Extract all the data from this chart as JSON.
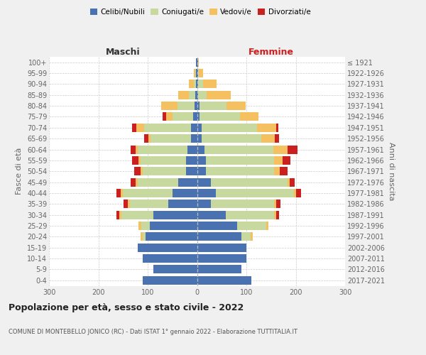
{
  "age_groups": [
    "100+",
    "95-99",
    "90-94",
    "85-89",
    "80-84",
    "75-79",
    "70-74",
    "65-69",
    "60-64",
    "55-59",
    "50-54",
    "45-49",
    "40-44",
    "35-39",
    "30-34",
    "25-29",
    "20-24",
    "15-19",
    "10-14",
    "5-9",
    "0-4"
  ],
  "birth_years": [
    "≤ 1921",
    "1922-1926",
    "1927-1931",
    "1932-1936",
    "1937-1941",
    "1942-1946",
    "1947-1951",
    "1952-1956",
    "1957-1961",
    "1962-1966",
    "1967-1971",
    "1972-1976",
    "1977-1981",
    "1982-1986",
    "1987-1991",
    "1992-1996",
    "1997-2001",
    "2002-2006",
    "2007-2011",
    "2012-2016",
    "2017-2021"
  ],
  "maschi_celibi": [
    2,
    2,
    2,
    4,
    5,
    8,
    12,
    12,
    20,
    22,
    22,
    38,
    50,
    58,
    88,
    95,
    105,
    120,
    110,
    88,
    110
  ],
  "maschi_coniugati": [
    0,
    2,
    5,
    12,
    35,
    42,
    95,
    82,
    100,
    92,
    88,
    82,
    100,
    78,
    65,
    18,
    5,
    0,
    0,
    0,
    0
  ],
  "maschi_vedovi": [
    0,
    2,
    10,
    22,
    32,
    12,
    16,
    5,
    5,
    5,
    5,
    5,
    5,
    5,
    5,
    5,
    5,
    0,
    0,
    0,
    0
  ],
  "maschi_divorziati": [
    0,
    0,
    0,
    0,
    0,
    8,
    8,
    8,
    10,
    12,
    12,
    10,
    8,
    8,
    5,
    0,
    0,
    0,
    0,
    0,
    0
  ],
  "femmine_nubili": [
    2,
    2,
    2,
    2,
    5,
    5,
    10,
    10,
    15,
    18,
    18,
    28,
    38,
    28,
    58,
    82,
    90,
    100,
    100,
    90,
    110
  ],
  "femmine_coniugate": [
    0,
    2,
    10,
    18,
    55,
    82,
    112,
    120,
    140,
    138,
    138,
    155,
    158,
    128,
    98,
    58,
    18,
    0,
    0,
    0,
    0
  ],
  "femmine_vedove": [
    2,
    8,
    28,
    48,
    38,
    38,
    38,
    28,
    28,
    18,
    12,
    5,
    5,
    5,
    5,
    5,
    5,
    0,
    0,
    0,
    0
  ],
  "femmine_divorziate": [
    0,
    0,
    0,
    0,
    0,
    0,
    5,
    8,
    20,
    15,
    15,
    10,
    10,
    8,
    5,
    0,
    0,
    0,
    0,
    0,
    0
  ],
  "color_celibi": "#4a72b0",
  "color_coniugati": "#c8d9a0",
  "color_vedovi": "#f5c060",
  "color_divorziati": "#cc2020",
  "bg_color": "#f0f0f0",
  "plot_bg": "#ffffff",
  "title": "Popolazione per età, sesso e stato civile - 2022",
  "subtitle": "COMUNE DI MONTEBELLO JONICO (RC) - Dati ISTAT 1° gennaio 2022 - Elaborazione TUTTITALIA.IT",
  "label_maschi": "Maschi",
  "label_femmine": "Femmine",
  "ylabel_left": "Fasce di età",
  "ylabel_right": "Anni di nascita",
  "legend_celibi": "Celibi/Nubili",
  "legend_coniugati": "Coniugati/e",
  "legend_vedovi": "Vedovi/e",
  "legend_divorziati": "Divorziati/e",
  "xlim": 300
}
